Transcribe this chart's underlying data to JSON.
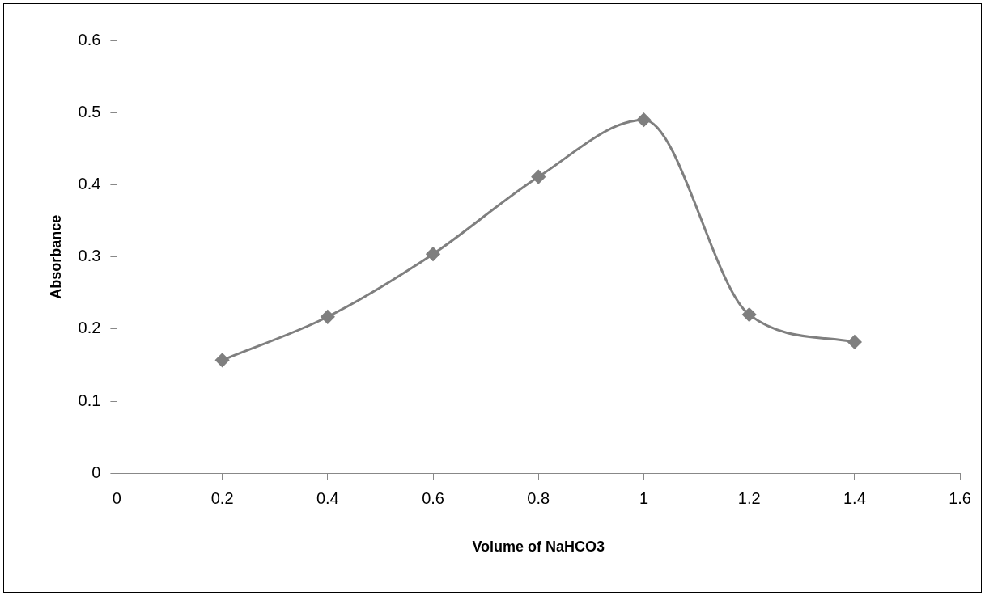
{
  "chart_data": {
    "type": "line",
    "xlabel": "Volume of NaHCO3",
    "ylabel": "Absorbance",
    "x": [
      0.2,
      0.4,
      0.6,
      0.8,
      1.0,
      1.2,
      1.4
    ],
    "series": [
      {
        "color": "#7f7f7f",
        "values": [
          0.157,
          0.217,
          0.304,
          0.411,
          0.49,
          0.22,
          0.182
        ]
      }
    ],
    "xlim": [
      0,
      1.6
    ],
    "xticks": [
      0,
      0.2,
      0.4,
      0.6,
      0.8,
      1,
      1.2,
      1.4,
      1.6
    ],
    "ylim": [
      0,
      0.6
    ],
    "yticks": [
      0,
      0.1,
      0.2,
      0.3,
      0.4,
      0.5,
      0.6
    ],
    "grid": false,
    "legend": false,
    "marker": "diamond",
    "line_style": "solid"
  }
}
